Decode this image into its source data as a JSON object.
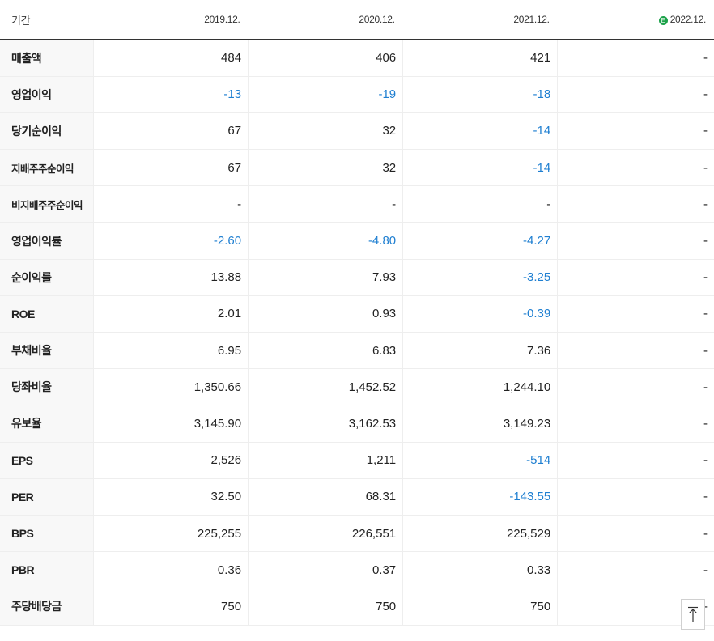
{
  "header": {
    "label": "기간",
    "periods": [
      "2019.12.",
      "2020.12.",
      "2021.12.",
      "2022.12."
    ],
    "estimate_mark": "E"
  },
  "rows": [
    {
      "label": "매출액",
      "values": [
        "484",
        "406",
        "421",
        "-"
      ]
    },
    {
      "label": "영업이익",
      "values": [
        "-13",
        "-19",
        "-18",
        "-"
      ]
    },
    {
      "label": "당기순이익",
      "values": [
        "67",
        "32",
        "-14",
        "-"
      ]
    },
    {
      "label": "지배주주순이익",
      "values": [
        "67",
        "32",
        "-14",
        "-"
      ]
    },
    {
      "label": "비지배주주순이익",
      "values": [
        "-",
        "-",
        "-",
        "-"
      ]
    },
    {
      "label": "영업이익률",
      "values": [
        "-2.60",
        "-4.80",
        "-4.27",
        "-"
      ]
    },
    {
      "label": "순이익률",
      "values": [
        "13.88",
        "7.93",
        "-3.25",
        "-"
      ]
    },
    {
      "label": "ROE",
      "values": [
        "2.01",
        "0.93",
        "-0.39",
        "-"
      ]
    },
    {
      "label": "부채비율",
      "values": [
        "6.95",
        "6.83",
        "7.36",
        "-"
      ]
    },
    {
      "label": "당좌비율",
      "values": [
        "1,350.66",
        "1,452.52",
        "1,244.10",
        "-"
      ]
    },
    {
      "label": "유보율",
      "values": [
        "3,145.90",
        "3,162.53",
        "3,149.23",
        "-"
      ]
    },
    {
      "label": "EPS",
      "values": [
        "2,526",
        "1,211",
        "-514",
        "-"
      ]
    },
    {
      "label": "PER",
      "values": [
        "32.50",
        "68.31",
        "-143.55",
        "-"
      ]
    },
    {
      "label": "BPS",
      "values": [
        "225,255",
        "226,551",
        "225,529",
        "-"
      ]
    },
    {
      "label": "PBR",
      "values": [
        "0.36",
        "0.37",
        "0.33",
        "-"
      ]
    },
    {
      "label": "주당배당금",
      "values": [
        "750",
        "750",
        "750",
        "-"
      ]
    }
  ],
  "colors": {
    "negative": "#1f7fd1",
    "estimate": "#1ca24a"
  },
  "icons": {
    "scroll_top": "arrow-up-icon"
  }
}
